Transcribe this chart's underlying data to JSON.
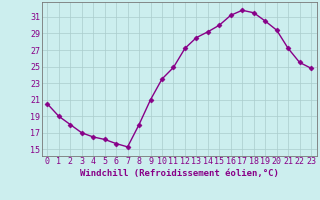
{
  "x": [
    0,
    1,
    2,
    3,
    4,
    5,
    6,
    7,
    8,
    9,
    10,
    11,
    12,
    13,
    14,
    15,
    16,
    17,
    18,
    19,
    20,
    21,
    22,
    23
  ],
  "y": [
    20.5,
    19.0,
    18.0,
    17.0,
    16.5,
    16.2,
    15.7,
    15.3,
    18.0,
    21.0,
    23.5,
    24.9,
    27.2,
    28.5,
    29.2,
    30.0,
    31.2,
    31.8,
    31.5,
    30.5,
    29.4,
    27.2,
    25.5,
    24.8
  ],
  "line_color": "#880088",
  "marker": "D",
  "markersize": 2.5,
  "linewidth": 1.0,
  "bg_color": "#cceeee",
  "grid_color": "#aacccc",
  "xlabel": "Windchill (Refroidissement éolien,°C)",
  "xlabel_fontsize": 6.5,
  "tick_fontsize": 6,
  "yticks": [
    15,
    17,
    19,
    21,
    23,
    25,
    27,
    29,
    31
  ],
  "ylim": [
    14.2,
    32.8
  ],
  "xlim": [
    -0.5,
    23.5
  ],
  "xtick_labels": [
    "0",
    "1",
    "2",
    "3",
    "4",
    "5",
    "6",
    "7",
    "8",
    "9",
    "10",
    "11",
    "12",
    "13",
    "14",
    "15",
    "16",
    "17",
    "18",
    "19",
    "20",
    "21",
    "22",
    "23"
  ]
}
